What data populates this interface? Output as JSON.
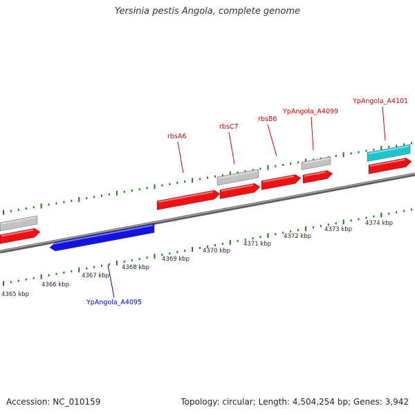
{
  "title": "Yersinia pestis Angola, complete genome",
  "footer": {
    "accession": "Accession: NC_010159",
    "summary": "Topology: circular; Length: 4,504,254 bp; Genes: 3,942"
  },
  "colors": {
    "forward_gene": "#ee1111",
    "reverse_gene": "#1414e0",
    "other_feature": "#c2c2c2",
    "rna_feature": "#1ec6cc",
    "backbone": "#808080",
    "tick": "#1a7a1a",
    "forward_label": "#cc0000",
    "reverse_label": "#0000bb"
  },
  "kbp_labels": [
    "4365 kbp",
    "4366 kbp",
    "4367 kbp",
    "4368 kbp",
    "4369 kbp",
    "4370 kbp",
    "4371 kbp",
    "4372 kbp",
    "4373 kbp",
    "4374 kbp"
  ],
  "gene_labels": {
    "rbsA6": "rbsA6",
    "rbsC7": "rbsC7",
    "rbsB6": "rbsB6",
    "ypa4099": "YpAngola_A4099",
    "ypa4101": "YpAngola_A4101",
    "ypa4095": "YpAngola_A4095"
  }
}
